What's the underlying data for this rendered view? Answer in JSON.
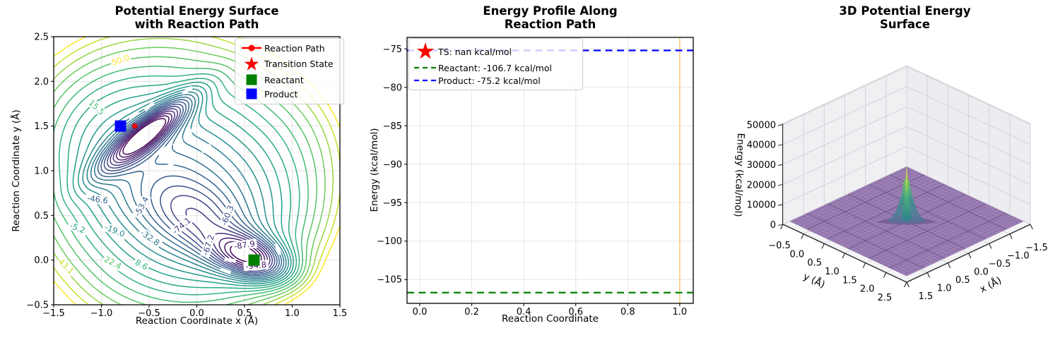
{
  "figure": {
    "background": "#ffffff"
  },
  "chart_data": [
    {
      "type": "contour",
      "title": "Potential Energy Surface\nwith Reaction Path",
      "xlabel": "Reaction Coordinate x (Å)",
      "ylabel": "Reaction Coordinate y (Å)",
      "xlim": [
        -1.5,
        1.5
      ],
      "ylim": [
        -0.5,
        2.5
      ],
      "xticks": [
        -1.5,
        -1.0,
        -0.5,
        0.0,
        0.5,
        1.0,
        1.5
      ],
      "yticks": [
        -0.5,
        0.0,
        0.5,
        1.0,
        1.5,
        2.0,
        2.5
      ],
      "grid": true,
      "colormap": "viridis",
      "levels": [
        50.0,
        43.1,
        36.2,
        29.3,
        22.4,
        15.5,
        8.6,
        1.7,
        -5.2,
        -12.1,
        -19.0,
        -25.9,
        -32.8,
        -39.7,
        -46.6,
        -53.4,
        -60.3,
        -67.2,
        -74.1,
        -81.0,
        -87.9,
        -94.8,
        -101.7
      ],
      "contour_labels": [
        {
          "text": "50.0",
          "x": -0.8,
          "y": 2.24,
          "rot": -18
        },
        {
          "text": "15.5",
          "x": -1.05,
          "y": 1.71,
          "rot": 42
        },
        {
          "text": "-46.6",
          "x": -1.04,
          "y": 0.68,
          "rot": 8
        },
        {
          "text": "-53.4",
          "x": -0.58,
          "y": 0.6,
          "rot": -62
        },
        {
          "text": "-74.1",
          "x": -0.16,
          "y": 0.385,
          "rot": -40
        },
        {
          "text": "-67.2",
          "x": 0.12,
          "y": 0.17,
          "rot": -72
        },
        {
          "text": "-60.3",
          "x": 0.32,
          "y": 0.5,
          "rot": -68
        },
        {
          "text": "-5.2",
          "x": -1.25,
          "y": 0.36,
          "rot": 22
        },
        {
          "text": "-19.0",
          "x": -0.86,
          "y": 0.33,
          "rot": 22
        },
        {
          "text": "-32.8",
          "x": -0.49,
          "y": 0.25,
          "rot": 35
        },
        {
          "text": "22.4",
          "x": -0.88,
          "y": -0.03,
          "rot": 28
        },
        {
          "text": "8.6",
          "x": -0.58,
          "y": -0.05,
          "rot": 28
        },
        {
          "text": "43.1",
          "x": -1.37,
          "y": -0.07,
          "rot": 45
        },
        {
          "text": "-87.9",
          "x": 0.5,
          "y": 0.17,
          "rot": -8
        },
        {
          "text": "-94.8",
          "x": 0.62,
          "y": -0.06,
          "rot": -5
        }
      ],
      "markers": [
        {
          "name": "product",
          "shape": "square",
          "x": -0.8,
          "y": 1.5,
          "color": "#0000ff",
          "size": 16
        },
        {
          "name": "reactant",
          "shape": "square",
          "x": 0.6,
          "y": 0.0,
          "color": "#008000",
          "size": 16
        },
        {
          "name": "reaction-path-point",
          "shape": "circle",
          "x": -0.65,
          "y": 1.5,
          "color": "#ff0000",
          "size": 7
        }
      ],
      "legend": {
        "items": [
          {
            "label": "Reaction Path",
            "type": "line-circle",
            "color": "#ff0000"
          },
          {
            "label": "Transition State",
            "type": "star",
            "color": "#ff0000"
          },
          {
            "label": "Reactant",
            "type": "square",
            "color": "#008000"
          },
          {
            "label": "Product",
            "type": "square",
            "color": "#0000ff"
          }
        ]
      }
    },
    {
      "type": "line",
      "title": "Energy Profile Along\nReaction Path",
      "xlabel": "Reaction Coordinate",
      "ylabel": "Energy (kcal/mol)",
      "xlim": [
        -0.049,
        1.052
      ],
      "ylim": [
        -108.1,
        -73.5
      ],
      "xticks": [
        0.0,
        0.2,
        0.4,
        0.6,
        0.8,
        1.0
      ],
      "yticks": [
        -75,
        -80,
        -85,
        -90,
        -95,
        -100,
        -105
      ],
      "grid": true,
      "hlines": [
        {
          "name": "product-energy",
          "y": -75.2,
          "color": "#0000ff",
          "dash": true
        },
        {
          "name": "reactant-energy",
          "y": -106.7,
          "color": "#008000",
          "dash": true
        }
      ],
      "vlines": [
        {
          "name": "path-end",
          "x": 1.0,
          "color": "#ffa500",
          "opacity": 0.45
        }
      ],
      "legend": {
        "items": [
          {
            "label": "TS: nan kcal/mol",
            "type": "star",
            "color": "#ff0000"
          },
          {
            "label": "Reactant: -106.7 kcal/mol",
            "type": "dashed",
            "color": "#008000"
          },
          {
            "label": "Product: -75.2 kcal/mol",
            "type": "dashed",
            "color": "#0000ff"
          }
        ]
      }
    },
    {
      "type": "surface3d",
      "title": "3D Potential Energy\nSurface",
      "xlabel": "x (Å)",
      "ylabel": "y (Å)",
      "zlabel": "Energy (kcal/mol)",
      "xticks": [
        1.5,
        1.0,
        0.5,
        0.0,
        -0.5,
        -1.0,
        -1.5
      ],
      "yticks": [
        -0.5,
        0.0,
        0.5,
        1.0,
        1.5,
        2.0,
        2.5
      ],
      "zticks": [
        0,
        10000,
        20000,
        30000,
        40000,
        50000
      ],
      "surface": {
        "base_color": "#9070ac",
        "peak": {
          "x": 0.0,
          "y": 1.0,
          "z": 32000
        },
        "colormap": "viridis"
      }
    }
  ]
}
